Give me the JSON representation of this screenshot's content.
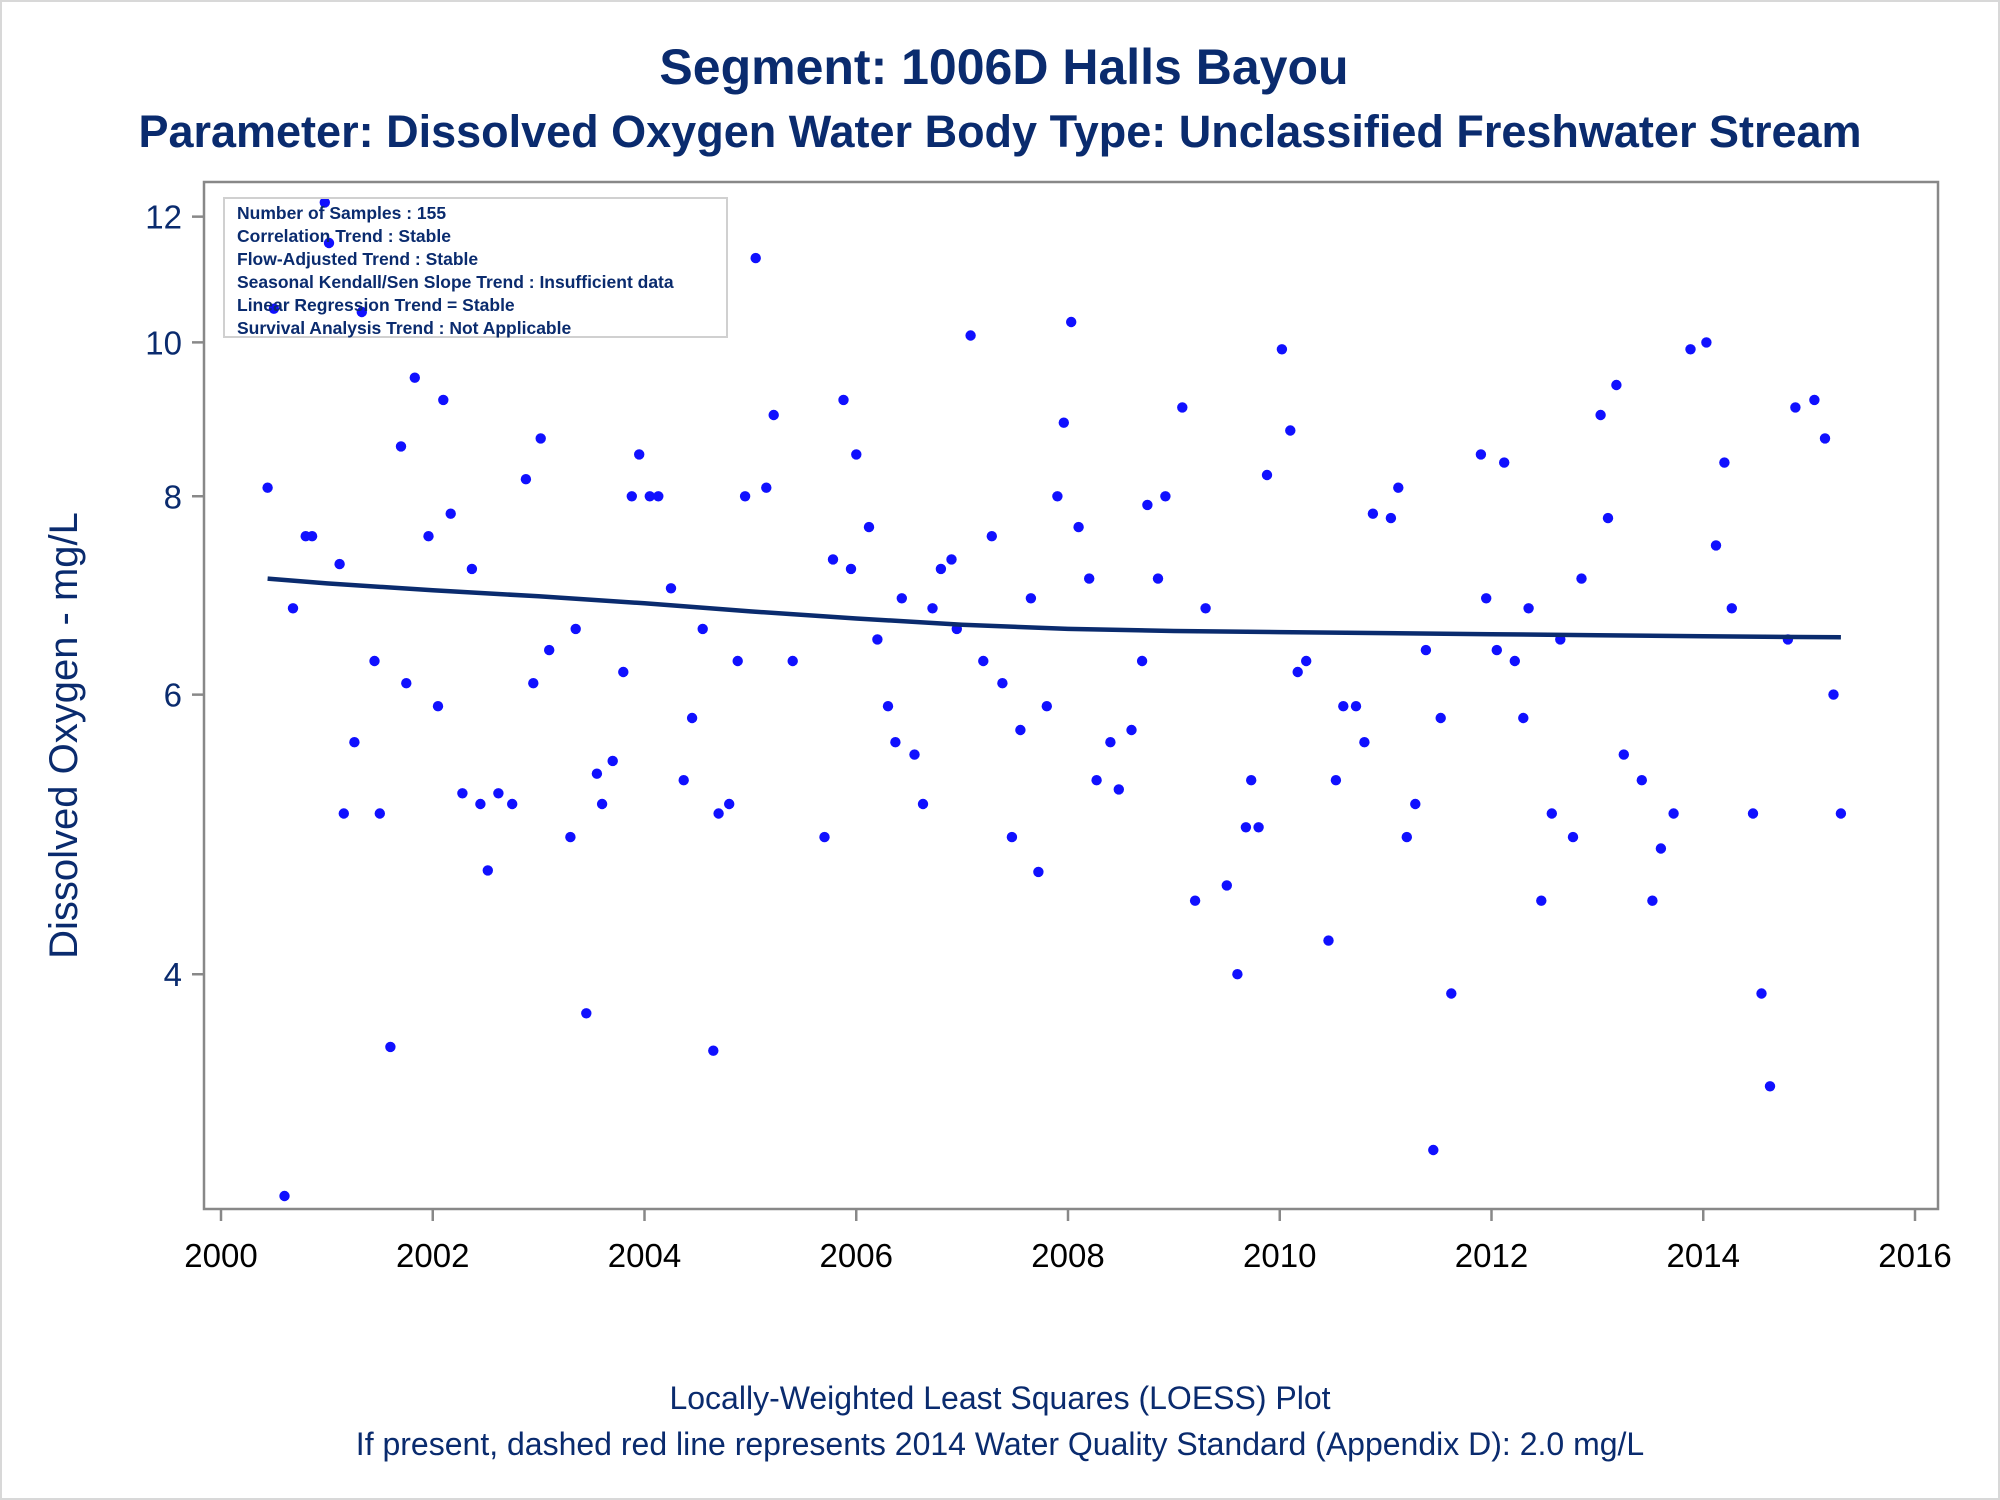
{
  "header": {
    "title": "Segment: 1006D  Halls Bayou",
    "subtitle": "Parameter: Dissolved Oxygen   Water Body Type: Unclassified Freshwater Stream"
  },
  "stats": [
    "Number of Samples : 155",
    "Correlation Trend : Stable",
    "Flow-Adjusted Trend : Stable",
    "Seasonal Kendall/Sen Slope Trend : Insufficient data",
    "Linear Regression Trend = Stable",
    "Survival Analysis Trend : Not Applicable"
  ],
  "footer": {
    "line1": "Locally-Weighted Least Squares (LOESS) Plot",
    "line2": "If present, dashed red line represents 2014 Water Quality Standard (Appendix D): 2.0 mg/L"
  },
  "chart_data": {
    "type": "scatter",
    "title": "Segment: 1006D  Halls Bayou",
    "subtitle": "Parameter: Dissolved Oxygen   Water Body Type: Unclassified Freshwater Stream",
    "xlabel": "",
    "ylabel": "Dissolved Oxygen - mg/L",
    "y_scale": "log",
    "xlim": [
      2000,
      2016
    ],
    "ylim": [
      2.85,
      12.6
    ],
    "x_ticks": [
      2000,
      2002,
      2004,
      2006,
      2008,
      2010,
      2012,
      2014,
      2016
    ],
    "y_ticks": [
      4,
      6,
      8,
      10,
      12
    ],
    "grid": false,
    "colors": {
      "points": "#1010ff",
      "loess": "#0a2b6e",
      "text": "#0a2b6e",
      "axis": "#888888"
    },
    "series": [
      {
        "name": "",
        "kind": "points",
        "x": [
          2000.44,
          2000.5,
          2000.6,
          2000.68,
          2000.8,
          2000.86,
          2000.98,
          2001.02,
          2001.12,
          2001.16,
          2001.26,
          2001.33,
          2001.45,
          2001.5,
          2001.6,
          2001.7,
          2001.75,
          2001.83,
          2001.96,
          2002.05,
          2002.1,
          2002.17,
          2002.28,
          2002.37,
          2002.45,
          2002.52,
          2002.62,
          2002.75,
          2002.88,
          2002.95,
          2003.02,
          2003.1,
          2003.3,
          2003.35,
          2003.45,
          2003.55,
          2003.6,
          2003.7,
          2003.8,
          2003.88,
          2003.95,
          2004.05,
          2004.13,
          2004.25,
          2004.37,
          2004.45,
          2004.55,
          2004.65,
          2004.7,
          2004.8,
          2004.88,
          2004.95,
          2005.05,
          2005.15,
          2005.22,
          2005.4,
          2005.7,
          2005.78,
          2005.88,
          2005.95,
          2006.0,
          2006.12,
          2006.2,
          2006.3,
          2006.37,
          2006.43,
          2006.55,
          2006.63,
          2006.72,
          2006.8,
          2006.9,
          2006.95,
          2007.08,
          2007.2,
          2007.28,
          2007.38,
          2007.47,
          2007.55,
          2007.65,
          2007.72,
          2007.8,
          2007.9,
          2007.96,
          2008.03,
          2008.1,
          2008.2,
          2008.27,
          2008.4,
          2008.48,
          2008.6,
          2008.7,
          2008.75,
          2008.85,
          2008.92,
          2009.08,
          2009.2,
          2009.3,
          2009.5,
          2009.6,
          2009.68,
          2009.73,
          2009.8,
          2009.88,
          2010.02,
          2010.1,
          2010.17,
          2010.25,
          2010.46,
          2010.53,
          2010.6,
          2010.72,
          2010.8,
          2010.88,
          2011.05,
          2011.12,
          2011.2,
          2011.28,
          2011.38,
          2011.45,
          2011.52,
          2011.62,
          2011.9,
          2011.95,
          2012.05,
          2012.12,
          2012.22,
          2012.3,
          2012.35,
          2012.47,
          2012.57,
          2012.65,
          2012.77,
          2012.85,
          2013.03,
          2013.1,
          2013.18,
          2013.25,
          2013.42,
          2013.52,
          2013.6,
          2013.72,
          2013.88,
          2014.03,
          2014.12,
          2014.2,
          2014.27,
          2014.47,
          2014.55,
          2014.63,
          2014.8,
          2014.87,
          2015.05,
          2015.15,
          2015.23,
          2015.3
        ],
        "y": [
          8.1,
          10.5,
          2.9,
          6.8,
          7.55,
          7.55,
          12.25,
          11.55,
          7.25,
          5.05,
          5.6,
          10.45,
          6.3,
          5.05,
          3.6,
          8.6,
          6.1,
          9.5,
          7.55,
          5.9,
          9.2,
          7.8,
          5.2,
          7.2,
          5.12,
          4.65,
          5.2,
          5.12,
          8.2,
          6.1,
          8.7,
          6.4,
          4.88,
          6.6,
          3.78,
          5.35,
          5.12,
          5.45,
          6.2,
          8.0,
          8.5,
          8.0,
          8.0,
          7.0,
          5.3,
          5.8,
          6.6,
          3.58,
          5.05,
          5.12,
          6.3,
          8.0,
          11.3,
          8.1,
          9.0,
          6.3,
          4.88,
          7.3,
          9.2,
          7.2,
          8.5,
          7.65,
          6.5,
          5.9,
          5.6,
          6.9,
          5.5,
          5.12,
          6.8,
          7.2,
          7.3,
          6.6,
          10.1,
          6.3,
          7.55,
          6.1,
          4.88,
          5.7,
          6.9,
          4.64,
          5.9,
          8.0,
          8.9,
          10.3,
          7.65,
          7.1,
          5.3,
          5.6,
          5.23,
          5.7,
          6.3,
          7.9,
          7.1,
          8.0,
          9.1,
          4.45,
          6.8,
          4.55,
          4.0,
          4.95,
          5.3,
          4.95,
          8.25,
          9.9,
          8.8,
          6.2,
          6.3,
          4.2,
          5.3,
          5.9,
          5.9,
          5.6,
          7.8,
          7.75,
          8.1,
          4.88,
          5.12,
          6.4,
          3.1,
          5.8,
          3.89,
          8.5,
          6.9,
          6.4,
          8.4,
          6.3,
          5.8,
          6.8,
          4.45,
          5.05,
          6.5,
          4.88,
          7.1,
          9.0,
          7.75,
          9.4,
          5.5,
          5.3,
          4.45,
          4.8,
          5.05,
          9.9,
          10.0,
          7.45,
          8.4,
          6.8,
          5.05,
          3.89,
          3.4,
          6.5,
          9.1,
          9.2,
          8.7,
          6.0,
          5.05
        ]
      },
      {
        "name": "",
        "kind": "line",
        "x": [
          2000.44,
          2001,
          2002,
          2003,
          2004,
          2005,
          2006,
          2007,
          2008,
          2009,
          2010,
          2011,
          2012,
          2013,
          2014,
          2015.3
        ],
        "y": [
          7.1,
          7.05,
          6.98,
          6.92,
          6.85,
          6.77,
          6.7,
          6.64,
          6.6,
          6.58,
          6.57,
          6.56,
          6.55,
          6.54,
          6.53,
          6.52
        ]
      }
    ]
  }
}
